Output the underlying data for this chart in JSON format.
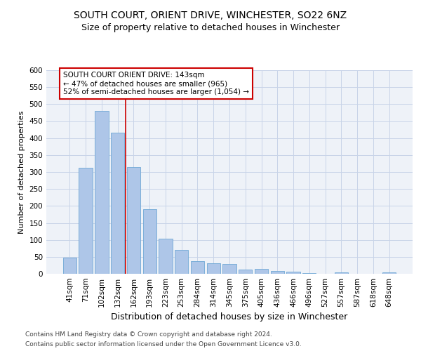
{
  "title": "SOUTH COURT, ORIENT DRIVE, WINCHESTER, SO22 6NZ",
  "subtitle": "Size of property relative to detached houses in Winchester",
  "xlabel": "Distribution of detached houses by size in Winchester",
  "ylabel": "Number of detached properties",
  "categories": [
    "41sqm",
    "71sqm",
    "102sqm",
    "132sqm",
    "162sqm",
    "193sqm",
    "223sqm",
    "253sqm",
    "284sqm",
    "314sqm",
    "345sqm",
    "375sqm",
    "405sqm",
    "436sqm",
    "466sqm",
    "496sqm",
    "527sqm",
    "557sqm",
    "587sqm",
    "618sqm",
    "648sqm"
  ],
  "values": [
    47,
    312,
    480,
    415,
    315,
    190,
    103,
    70,
    38,
    32,
    30,
    13,
    14,
    8,
    6,
    3,
    0,
    5,
    0,
    0,
    5
  ],
  "bar_color": "#aec6e8",
  "bar_edge_color": "#6fa8d5",
  "grid_color": "#c8d4e8",
  "background_color": "#eef2f8",
  "vline_x": 3.5,
  "vline_color": "#cc0000",
  "annotation_text": "SOUTH COURT ORIENT DRIVE: 143sqm\n← 47% of detached houses are smaller (965)\n52% of semi-detached houses are larger (1,054) →",
  "annotation_box_color": "#ffffff",
  "annotation_box_edge": "#cc0000",
  "ylim": [
    0,
    600
  ],
  "yticks": [
    0,
    50,
    100,
    150,
    200,
    250,
    300,
    350,
    400,
    450,
    500,
    550,
    600
  ],
  "footer_line1": "Contains HM Land Registry data © Crown copyright and database right 2024.",
  "footer_line2": "Contains public sector information licensed under the Open Government Licence v3.0.",
  "title_fontsize": 10,
  "subtitle_fontsize": 9,
  "xlabel_fontsize": 9,
  "ylabel_fontsize": 8,
  "tick_fontsize": 7.5,
  "annotation_fontsize": 7.5,
  "footer_fontsize": 6.5
}
